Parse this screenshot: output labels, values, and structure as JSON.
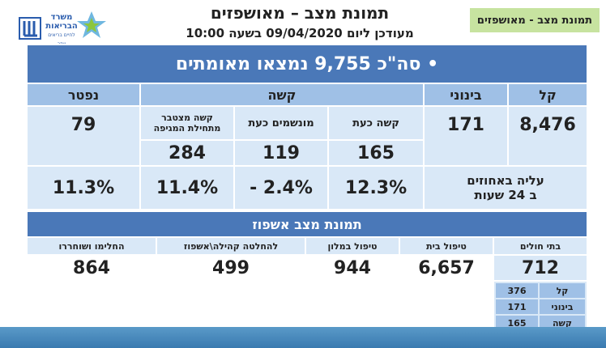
{
  "header": {
    "title": "תמונת מצב – מאושפזים",
    "subtitle": "מעודכן ליום 09/04/2020 בשעה 10:00",
    "tag": "תמונת מצב - מאושפזים",
    "logo_line1": "משרד",
    "logo_line2": "הבריאות",
    "logo_line3": "לחיים בריאים יותר"
  },
  "summary": {
    "total": "• סה\"כ 9,755 נמצאו מאומתים"
  },
  "severity": {
    "light_label": "קל",
    "moderate_label": "בינוני",
    "severe_label": "קשה",
    "dead_label": "נפטר",
    "light_value": "8,476",
    "moderate_value": "171",
    "dead_value": "79",
    "severe_now_label": "קשה כעת",
    "ventilated_label": "מונשמים כעת",
    "cumulative_label": "קשה מצטבר מתחילת המגיפה",
    "severe_now_value": "165",
    "ventilated_value": "119",
    "cumulative_value": "284"
  },
  "change": {
    "label_line1": "עליה באחוזים",
    "label_line2": "ב 24 שעות",
    "severe_now_pct": "12.3%",
    "ventilated_pct": "- 2.4%",
    "cumulative_pct": "11.4%",
    "dead_pct": "11.3%"
  },
  "hospitalization": {
    "heading": "תמונת מצב אשפוז",
    "hospitals_label": "בתי חולים",
    "home_label": "טיפול בית",
    "hotel_label": "טיפול במלון",
    "pending_label": "להחלטה קהילה\\אשפוז",
    "recovered_label": "החלימו ושוחררו",
    "hospitals_value": "712",
    "home_value": "6,657",
    "hotel_value": "944",
    "pending_value": "499",
    "recovered_value": "864",
    "breakdown": [
      {
        "label": "קל",
        "value": "376"
      },
      {
        "label": "בינוני",
        "value": "171"
      },
      {
        "label": "קשה",
        "value": "165"
      }
    ]
  }
}
